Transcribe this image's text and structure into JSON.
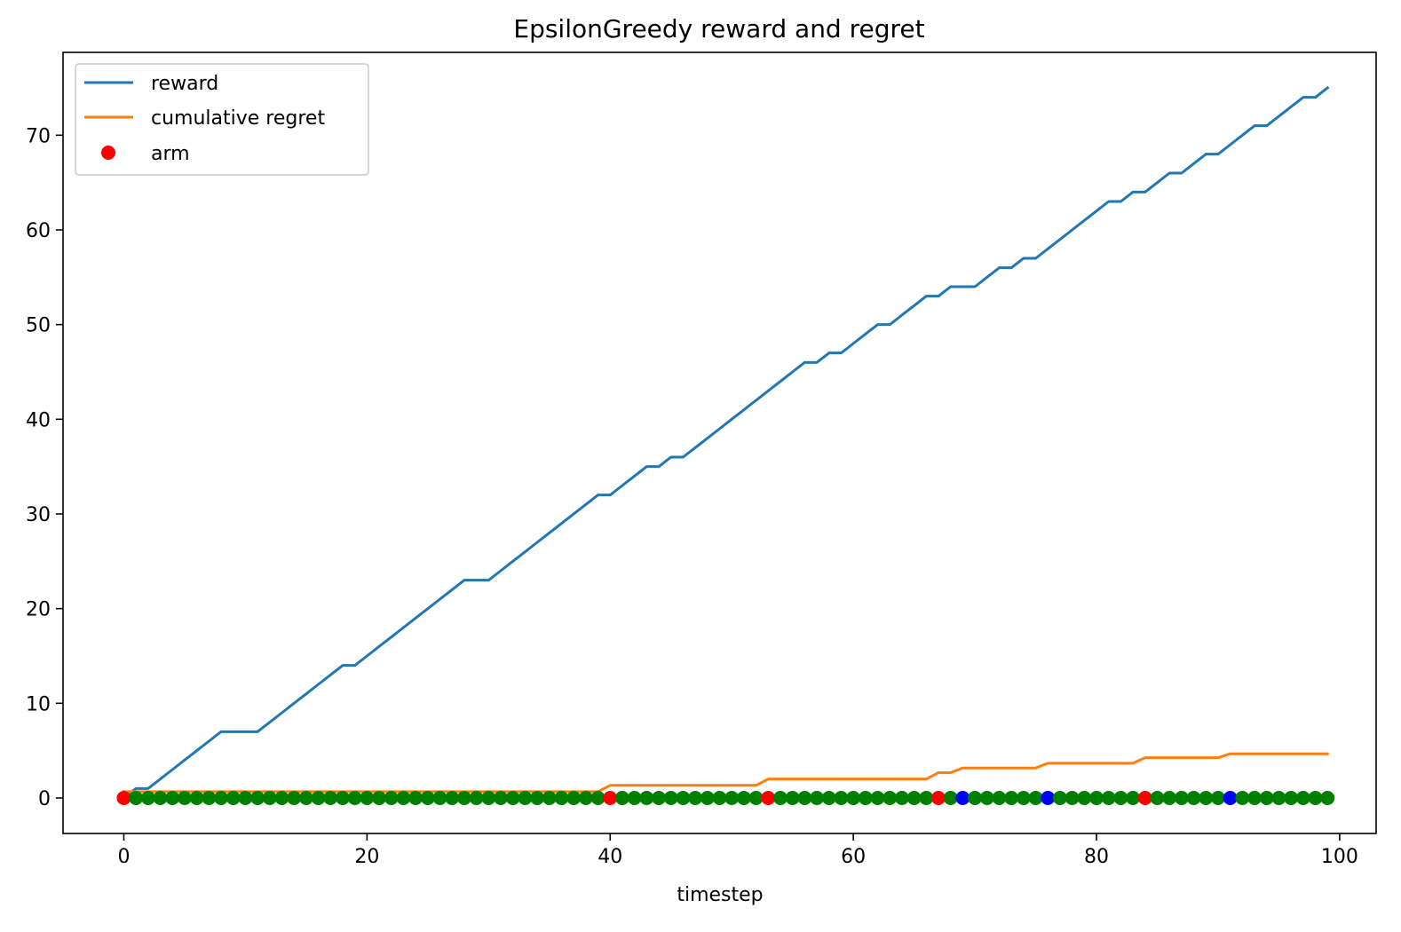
{
  "chart_data": {
    "type": "line",
    "title": "EpsilonGreedy reward and regret",
    "xlabel": "timestep",
    "ylabel": "",
    "xlim": [
      -5,
      103
    ],
    "ylim": [
      -3.75,
      78.75
    ],
    "xticks": [
      0,
      20,
      40,
      60,
      80,
      100
    ],
    "yticks": [
      0,
      10,
      20,
      30,
      40,
      50,
      60,
      70
    ],
    "legend_position": "top-left",
    "legend": [
      {
        "label": "reward",
        "type": "line",
        "color": "#1f77b4"
      },
      {
        "label": "cumulative regret",
        "type": "line",
        "color": "#ff7f0e"
      },
      {
        "label": "arm",
        "type": "marker",
        "color": "#ff0000"
      }
    ],
    "series": [
      {
        "name": "reward",
        "type": "line",
        "color": "#1f77b4",
        "x": [
          0,
          1,
          2,
          3,
          4,
          5,
          6,
          7,
          8,
          9,
          10,
          11,
          12,
          13,
          14,
          15,
          16,
          17,
          18,
          19,
          20,
          21,
          22,
          23,
          24,
          25,
          26,
          27,
          28,
          29,
          30,
          31,
          32,
          33,
          34,
          35,
          36,
          37,
          38,
          39,
          40,
          41,
          42,
          43,
          44,
          45,
          46,
          47,
          48,
          49,
          50,
          51,
          52,
          53,
          54,
          55,
          56,
          57,
          58,
          59,
          60,
          61,
          62,
          63,
          64,
          65,
          66,
          67,
          68,
          69,
          70,
          71,
          72,
          73,
          74,
          75,
          76,
          77,
          78,
          79,
          80,
          81,
          82,
          83,
          84,
          85,
          86,
          87,
          88,
          89,
          90,
          91,
          92,
          93,
          94,
          95,
          96,
          97,
          98,
          99
        ],
        "y": [
          0,
          1,
          1,
          2,
          3,
          4,
          5,
          6,
          7,
          7,
          7,
          7,
          8,
          9,
          10,
          11,
          12,
          13,
          14,
          14,
          15,
          16,
          17,
          18,
          19,
          20,
          21,
          22,
          23,
          23,
          23,
          24,
          25,
          26,
          27,
          28,
          29,
          30,
          31,
          32,
          32,
          33,
          34,
          35,
          35,
          36,
          36,
          37,
          38,
          39,
          40,
          41,
          42,
          43,
          44,
          45,
          46,
          46,
          47,
          47,
          48,
          49,
          50,
          50,
          51,
          52,
          53,
          53,
          54,
          54,
          54,
          55,
          56,
          56,
          57,
          57,
          58,
          59,
          60,
          61,
          62,
          63,
          63,
          64,
          64,
          65,
          66,
          66,
          67,
          68,
          68,
          69,
          70,
          71,
          71,
          72,
          73,
          74,
          74,
          75
        ]
      },
      {
        "name": "cumulative regret",
        "type": "line",
        "color": "#ff7f0e",
        "x": [
          0,
          39,
          40,
          52,
          53,
          66,
          67,
          68,
          69,
          75,
          76,
          83,
          84,
          90,
          91,
          99
        ],
        "y": [
          0.67,
          0.67,
          1.33,
          1.33,
          2.0,
          2.0,
          2.67,
          2.67,
          3.17,
          3.17,
          3.67,
          3.67,
          4.25,
          4.25,
          4.67,
          4.67
        ]
      },
      {
        "name": "arm",
        "type": "scatter",
        "x": [
          0,
          1,
          2,
          3,
          4,
          5,
          6,
          7,
          8,
          9,
          10,
          11,
          12,
          13,
          14,
          15,
          16,
          17,
          18,
          19,
          20,
          21,
          22,
          23,
          24,
          25,
          26,
          27,
          28,
          29,
          30,
          31,
          32,
          33,
          34,
          35,
          36,
          37,
          38,
          39,
          40,
          41,
          42,
          43,
          44,
          45,
          46,
          47,
          48,
          49,
          50,
          51,
          52,
          53,
          54,
          55,
          56,
          57,
          58,
          59,
          60,
          61,
          62,
          63,
          64,
          65,
          66,
          67,
          68,
          69,
          70,
          71,
          72,
          73,
          74,
          75,
          76,
          77,
          78,
          79,
          80,
          81,
          82,
          83,
          84,
          85,
          86,
          87,
          88,
          89,
          90,
          91,
          92,
          93,
          94,
          95,
          96,
          97,
          98,
          99
        ],
        "y": [
          0,
          0,
          0,
          0,
          0,
          0,
          0,
          0,
          0,
          0,
          0,
          0,
          0,
          0,
          0,
          0,
          0,
          0,
          0,
          0,
          0,
          0,
          0,
          0,
          0,
          0,
          0,
          0,
          0,
          0,
          0,
          0,
          0,
          0,
          0,
          0,
          0,
          0,
          0,
          0,
          0,
          0,
          0,
          0,
          0,
          0,
          0,
          0,
          0,
          0,
          0,
          0,
          0,
          0,
          0,
          0,
          0,
          0,
          0,
          0,
          0,
          0,
          0,
          0,
          0,
          0,
          0,
          0,
          0,
          0,
          0,
          0,
          0,
          0,
          0,
          0,
          0,
          0,
          0,
          0,
          0,
          0,
          0,
          0,
          0,
          0,
          0,
          0,
          0,
          0,
          0,
          0,
          0,
          0,
          0,
          0,
          0,
          0,
          0,
          0
        ],
        "colors": [
          "#ff0000",
          "#008000",
          "#008000",
          "#008000",
          "#008000",
          "#008000",
          "#008000",
          "#008000",
          "#008000",
          "#008000",
          "#008000",
          "#008000",
          "#008000",
          "#008000",
          "#008000",
          "#008000",
          "#008000",
          "#008000",
          "#008000",
          "#008000",
          "#008000",
          "#008000",
          "#008000",
          "#008000",
          "#008000",
          "#008000",
          "#008000",
          "#008000",
          "#008000",
          "#008000",
          "#008000",
          "#008000",
          "#008000",
          "#008000",
          "#008000",
          "#008000",
          "#008000",
          "#008000",
          "#008000",
          "#008000",
          "#ff0000",
          "#008000",
          "#008000",
          "#008000",
          "#008000",
          "#008000",
          "#008000",
          "#008000",
          "#008000",
          "#008000",
          "#008000",
          "#008000",
          "#008000",
          "#ff0000",
          "#008000",
          "#008000",
          "#008000",
          "#008000",
          "#008000",
          "#008000",
          "#008000",
          "#008000",
          "#008000",
          "#008000",
          "#008000",
          "#008000",
          "#008000",
          "#ff0000",
          "#008000",
          "#0000ff",
          "#008000",
          "#008000",
          "#008000",
          "#008000",
          "#008000",
          "#008000",
          "#0000ff",
          "#008000",
          "#008000",
          "#008000",
          "#008000",
          "#008000",
          "#008000",
          "#008000",
          "#ff0000",
          "#008000",
          "#008000",
          "#008000",
          "#008000",
          "#008000",
          "#008000",
          "#0000ff",
          "#008000",
          "#008000",
          "#008000",
          "#008000",
          "#008000",
          "#008000",
          "#008000",
          "#008000"
        ]
      }
    ]
  }
}
